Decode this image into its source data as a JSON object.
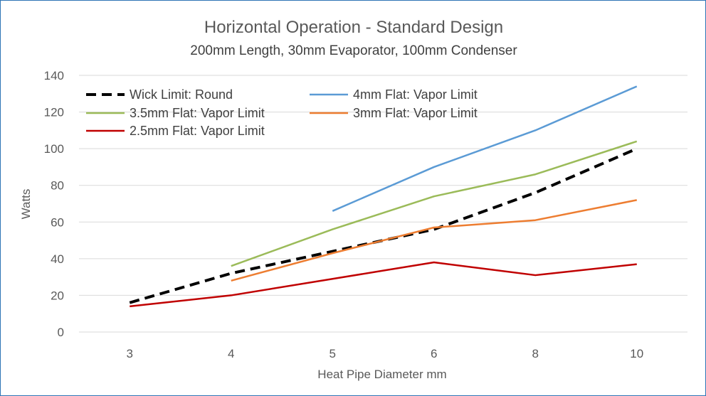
{
  "chart_data": {
    "type": "line",
    "title": "Horizontal Operation - Standard Design",
    "subtitle": "200mm Length, 30mm Evaporator, 100mm Condenser",
    "xlabel": "Heat Pipe Diameter mm",
    "ylabel": "Watts",
    "categories": [
      "3",
      "4",
      "5",
      "6",
      "8",
      "10"
    ],
    "ylim": [
      0,
      140
    ],
    "yticks": [
      0,
      20,
      40,
      60,
      80,
      100,
      120,
      140
    ],
    "grid": true,
    "legend_position": "top-left",
    "series": [
      {
        "name": "Wick Limit: Round",
        "color": "#000000",
        "dashed": true,
        "values": [
          16,
          32,
          44,
          56,
          76,
          100
        ]
      },
      {
        "name": "4mm Flat: Vapor Limit",
        "color": "#5b9bd5",
        "dashed": false,
        "values": [
          null,
          null,
          66,
          90,
          110,
          134
        ]
      },
      {
        "name": "3.5mm Flat: Vapor Limit",
        "color": "#9bbb59",
        "dashed": false,
        "values": [
          null,
          36,
          56,
          74,
          86,
          104
        ]
      },
      {
        "name": "3mm Flat: Vapor Limit",
        "color": "#ed7d31",
        "dashed": false,
        "values": [
          null,
          28,
          43,
          57,
          61,
          72
        ]
      },
      {
        "name": "2.5mm Flat: Vapor Limit",
        "color": "#c00000",
        "dashed": false,
        "values": [
          14,
          20,
          29,
          38,
          31,
          37
        ]
      }
    ]
  }
}
